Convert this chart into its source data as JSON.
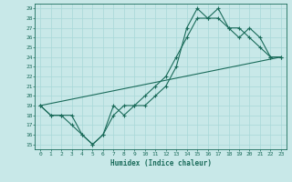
{
  "xlabel": "Humidex (Indice chaleur)",
  "bg_color": "#c8e8e8",
  "grid_color": "#a8d8d8",
  "line_color": "#1a6b5a",
  "xlim": [
    -0.5,
    23.5
  ],
  "ylim": [
    14.5,
    29.5
  ],
  "xticks": [
    0,
    1,
    2,
    3,
    4,
    5,
    6,
    7,
    8,
    9,
    10,
    11,
    12,
    13,
    14,
    15,
    16,
    17,
    18,
    19,
    20,
    21,
    22,
    23
  ],
  "yticks": [
    15,
    16,
    17,
    18,
    19,
    20,
    21,
    22,
    23,
    24,
    25,
    26,
    27,
    28,
    29
  ],
  "series1_x": [
    0,
    1,
    2,
    3,
    4,
    5,
    6,
    7,
    8,
    9,
    10,
    11,
    12,
    13,
    14,
    15,
    16,
    17,
    18,
    19,
    20,
    21,
    22,
    23
  ],
  "series1_y": [
    19,
    18,
    18,
    17,
    16,
    15,
    16,
    19,
    18,
    19,
    19,
    20,
    21,
    23,
    27,
    29,
    28,
    28,
    27,
    26,
    27,
    26,
    24,
    24
  ],
  "series2_x": [
    0,
    1,
    2,
    3,
    4,
    5,
    6,
    7,
    8,
    9,
    10,
    11,
    12,
    13,
    14,
    15,
    16,
    17,
    18,
    19,
    20,
    21,
    22,
    23
  ],
  "series2_y": [
    19,
    18,
    18,
    18,
    16,
    15,
    16,
    18,
    19,
    19,
    20,
    21,
    22,
    24,
    26,
    28,
    28,
    29,
    27,
    27,
    26,
    25,
    24,
    24
  ],
  "series3_x": [
    0,
    23
  ],
  "series3_y": [
    19,
    24
  ]
}
